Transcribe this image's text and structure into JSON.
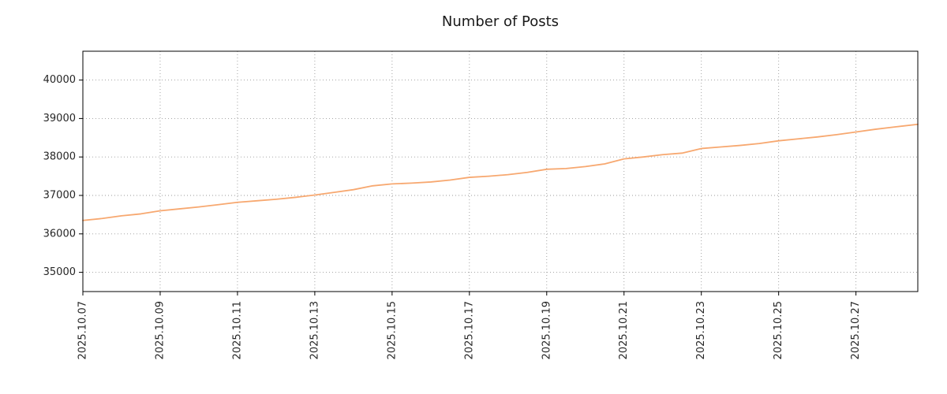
{
  "chart_data": {
    "type": "line",
    "title": "Number of Posts",
    "xlabel": "",
    "ylabel": "",
    "legend": "none",
    "grid": "dotted",
    "line_color": "#f7a870",
    "frame_color": "#000000",
    "grid_color": "#9a9a9a",
    "xlim": [
      0,
      21.6
    ],
    "ylim": [
      34500,
      40750
    ],
    "x_tick_positions": [
      0,
      2,
      4,
      6,
      8,
      10,
      12,
      14,
      16,
      18,
      20
    ],
    "x_tick_labels": [
      "2025.10.07",
      "2025.10.09",
      "2025.10.11",
      "2025.10.13",
      "2025.10.15",
      "2025.10.17",
      "2025.10.19",
      "2025.10.21",
      "2025.10.23",
      "2025.10.25",
      "2025.10.27"
    ],
    "y_ticks": [
      35000,
      36000,
      37000,
      38000,
      39000,
      40000
    ],
    "series": [
      {
        "name": "Number of Posts",
        "x": [
          0,
          0.5,
          1,
          1.5,
          2,
          2.5,
          3,
          3.5,
          4,
          4.5,
          5,
          5.5,
          6,
          6.5,
          7,
          7.5,
          8,
          8.5,
          9,
          9.5,
          10,
          10.5,
          11,
          11.5,
          12,
          12.5,
          13,
          13.5,
          14,
          14.5,
          15,
          15.5,
          16,
          16.5,
          17,
          17.5,
          18,
          18.5,
          19,
          19.5,
          20,
          20.5,
          21,
          21.6
        ],
        "values": [
          36350,
          36400,
          36470,
          36520,
          36600,
          36650,
          36700,
          36760,
          36820,
          36860,
          36900,
          36950,
          37010,
          37080,
          37150,
          37250,
          37300,
          37320,
          37350,
          37400,
          37470,
          37500,
          37540,
          37600,
          37680,
          37700,
          37750,
          37820,
          37950,
          38000,
          38060,
          38100,
          38220,
          38260,
          38300,
          38350,
          38420,
          38470,
          38520,
          38580,
          38650,
          38720,
          38780,
          38850
        ]
      }
    ]
  }
}
